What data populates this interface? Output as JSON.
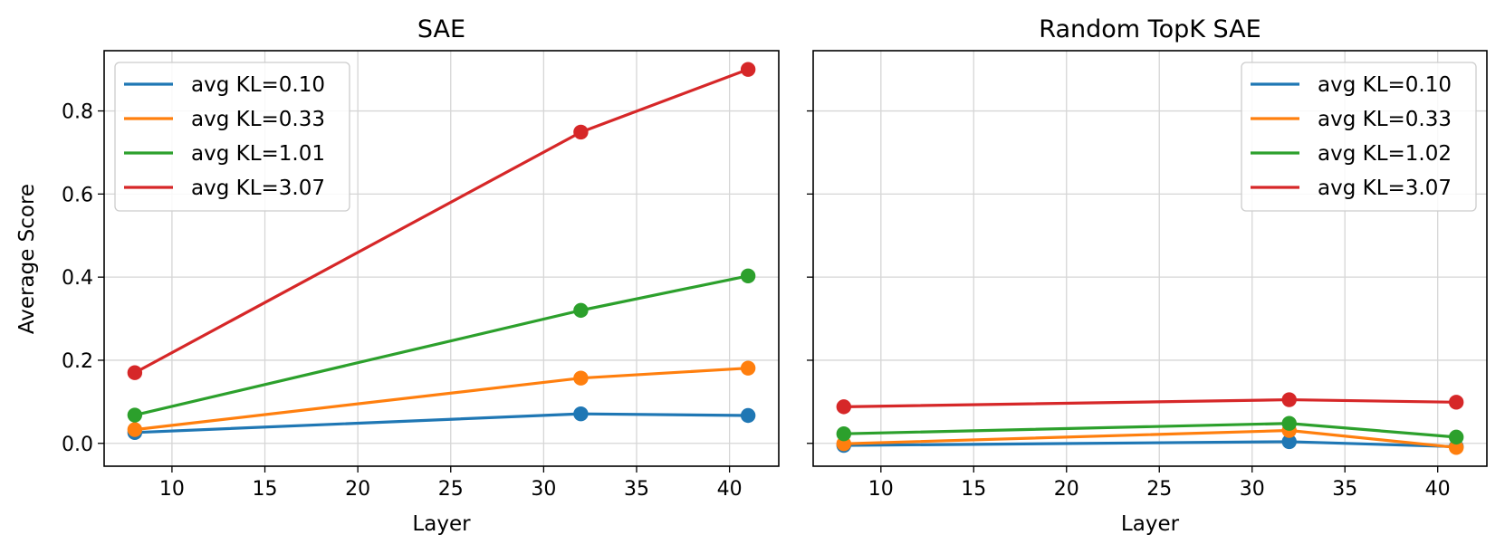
{
  "chart_data": [
    {
      "type": "line",
      "title": "SAE",
      "xlabel": "Layer",
      "ylabel": "Average Score",
      "x": [
        8,
        32,
        41
      ],
      "xlim": [
        6.35,
        42.65
      ],
      "ylim": [
        -0.055,
        0.945
      ],
      "xticks": [
        10,
        15,
        20,
        25,
        30,
        35,
        40
      ],
      "yticks": [
        0.0,
        0.2,
        0.4,
        0.6,
        0.8
      ],
      "ytick_labels": [
        "0.0",
        "0.2",
        "0.4",
        "0.6",
        "0.8"
      ],
      "grid": true,
      "legend_position": "upper-left",
      "series": [
        {
          "name": "avg KL=0.10",
          "color": "#1f77b4",
          "values": [
            0.026,
            0.071,
            0.067
          ]
        },
        {
          "name": "avg KL=0.33",
          "color": "#ff7f0e",
          "values": [
            0.033,
            0.157,
            0.181
          ]
        },
        {
          "name": "avg KL=1.01",
          "color": "#2ca02c",
          "values": [
            0.068,
            0.32,
            0.403
          ]
        },
        {
          "name": "avg KL=3.07",
          "color": "#d62728",
          "values": [
            0.17,
            0.749,
            0.9
          ]
        }
      ]
    },
    {
      "type": "line",
      "title": "Random TopK SAE",
      "xlabel": "Layer",
      "ylabel": "",
      "x": [
        8,
        32,
        41
      ],
      "xlim": [
        6.35,
        42.65
      ],
      "ylim": [
        -0.055,
        0.945
      ],
      "xticks": [
        10,
        15,
        20,
        25,
        30,
        35,
        40
      ],
      "yticks": [
        0.0,
        0.2,
        0.4,
        0.6,
        0.8
      ],
      "ytick_labels": [],
      "grid": true,
      "legend_position": "upper-right",
      "series": [
        {
          "name": "avg KL=0.10",
          "color": "#1f77b4",
          "values": [
            -0.005,
            0.004,
            -0.008
          ]
        },
        {
          "name": "avg KL=0.33",
          "color": "#ff7f0e",
          "values": [
            -0.001,
            0.031,
            -0.01
          ]
        },
        {
          "name": "avg KL=1.02",
          "color": "#2ca02c",
          "values": [
            0.023,
            0.048,
            0.015
          ]
        },
        {
          "name": "avg KL=3.07",
          "color": "#d62728",
          "values": [
            0.088,
            0.105,
            0.099
          ]
        }
      ]
    }
  ]
}
